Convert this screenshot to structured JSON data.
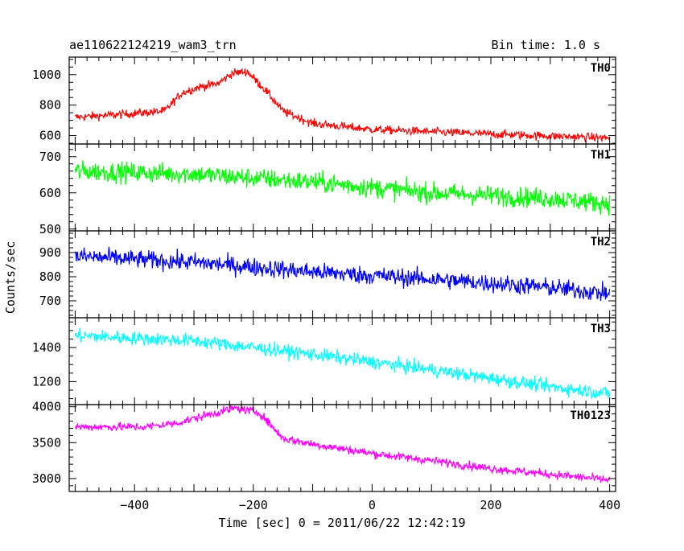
{
  "header": {
    "title": "ae110622124219_wam3_trn",
    "bin_time": "Bin time: 1.0 s"
  },
  "axes": {
    "xlabel": "Time [sec] 0 = 2011/06/22 12:42:19",
    "ylabel": "Counts/sec"
  },
  "chart_data": {
    "type": "line",
    "title": "ae110622124219_wam3_trn",
    "xlabel": "Time [sec] 0 = 2011/06/22 12:42:19",
    "ylabel": "Counts/sec",
    "xlim": [
      -510,
      410
    ],
    "x_ticks": [
      -400,
      -200,
      0,
      200,
      400
    ],
    "x_tick_labels": [
      "−400",
      "−200",
      "0",
      "200",
      "400"
    ],
    "bin_time_s": 1.0,
    "grid": false,
    "panels": [
      {
        "name": "TH0",
        "color": "#ff0000",
        "ylim": [
          545,
          1115
        ],
        "y_ticks": [
          600,
          800,
          1000
        ],
        "noise": 28,
        "trend": [
          [
            -500,
            720
          ],
          [
            -420,
            740
          ],
          [
            -350,
            760
          ],
          [
            -320,
            880
          ],
          [
            -290,
            920
          ],
          [
            -260,
            940
          ],
          [
            -235,
            1010
          ],
          [
            -210,
            1020
          ],
          [
            -180,
            900
          ],
          [
            -150,
            760
          ],
          [
            -100,
            680
          ],
          [
            0,
            640
          ],
          [
            200,
            610
          ],
          [
            400,
            585
          ]
        ]
      },
      {
        "name": "TH1",
        "color": "#00ff00",
        "ylim": [
          495,
          735
        ],
        "y_ticks": [
          500,
          600,
          700
        ],
        "noise": 28,
        "trend": [
          [
            -500,
            660
          ],
          [
            -300,
            652
          ],
          [
            -100,
            630
          ],
          [
            100,
            600
          ],
          [
            300,
            585
          ],
          [
            400,
            570
          ]
        ]
      },
      {
        "name": "TH2",
        "color": "#0000ff",
        "ylim": [
          630,
          990
        ],
        "y_ticks": [
          700,
          800,
          900
        ],
        "noise": 38,
        "trend": [
          [
            -500,
            885
          ],
          [
            -300,
            860
          ],
          [
            -100,
            820
          ],
          [
            100,
            790
          ],
          [
            300,
            755
          ],
          [
            400,
            730
          ]
        ]
      },
      {
        "name": "TH3",
        "color": "#00ffff",
        "ylim": [
          1065,
          1575
        ],
        "y_ticks": [
          1200,
          1400
        ],
        "noise": 40,
        "trend": [
          [
            -500,
            1470
          ],
          [
            -300,
            1440
          ],
          [
            -100,
            1360
          ],
          [
            100,
            1270
          ],
          [
            300,
            1170
          ],
          [
            400,
            1130
          ]
        ]
      },
      {
        "name": "TH0123",
        "color": "#ff00ff",
        "ylim": [
          2820,
          4030
        ],
        "y_ticks": [
          3000,
          3500,
          4000
        ],
        "noise": 60,
        "trend": [
          [
            -500,
            3720
          ],
          [
            -380,
            3720
          ],
          [
            -330,
            3770
          ],
          [
            -280,
            3880
          ],
          [
            -230,
            3980
          ],
          [
            -190,
            3920
          ],
          [
            -150,
            3560
          ],
          [
            -100,
            3480
          ],
          [
            0,
            3350
          ],
          [
            100,
            3250
          ],
          [
            200,
            3140
          ],
          [
            300,
            3060
          ],
          [
            400,
            2980
          ]
        ]
      }
    ]
  }
}
